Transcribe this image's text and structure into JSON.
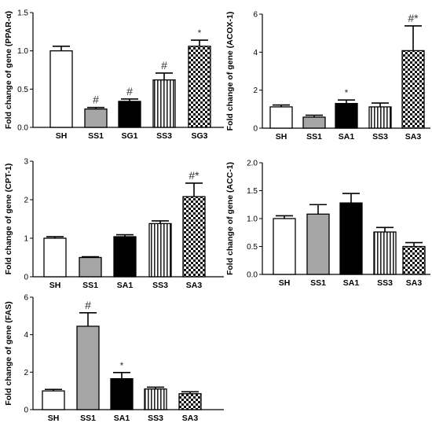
{
  "chart_data": [
    {
      "type": "bar",
      "ylabel": "Fold change of gene (PPAR-α)",
      "ylim": [
        0,
        1.5
      ],
      "yticks": [
        "0.0",
        "0.5",
        "1.0",
        "1.5"
      ],
      "categories": [
        "SH",
        "SS1",
        "SG1",
        "SS3",
        "SG3"
      ],
      "values": [
        1.0,
        0.24,
        0.34,
        0.62,
        1.06
      ],
      "errors": [
        0.06,
        0.02,
        0.03,
        0.09,
        0.08
      ],
      "annotations": [
        "",
        "#",
        "#",
        "#",
        "*"
      ],
      "fills": [
        "white",
        "gray",
        "black",
        "vstripe",
        "check"
      ]
    },
    {
      "type": "bar",
      "ylabel": "Fold change of gene (ACOX-1)",
      "ylim": [
        0,
        6
      ],
      "yticks": [
        "0",
        "2",
        "4",
        "6"
      ],
      "categories": [
        "SH",
        "SS1",
        "SA1",
        "SS3",
        "SA3"
      ],
      "values": [
        1.12,
        0.58,
        1.3,
        1.12,
        4.08
      ],
      "errors": [
        0.1,
        0.1,
        0.18,
        0.2,
        1.3
      ],
      "annotations": [
        "",
        "",
        "*",
        "",
        "#*"
      ],
      "fills": [
        "white",
        "gray",
        "black",
        "vstripe",
        "check"
      ]
    },
    {
      "type": "bar",
      "ylabel": "Fold change of gene (CPT-1)",
      "ylim": [
        0,
        3
      ],
      "yticks": [
        "0",
        "1",
        "2",
        "3"
      ],
      "categories": [
        "SH",
        "SS1",
        "SA1",
        "SS3",
        "SA3"
      ],
      "values": [
        1.0,
        0.5,
        1.04,
        1.38,
        2.08
      ],
      "errors": [
        0.04,
        0.02,
        0.05,
        0.07,
        0.35
      ],
      "annotations": [
        "",
        "",
        "",
        "",
        "#*"
      ],
      "fills": [
        "white",
        "gray",
        "black",
        "vstripe",
        "check"
      ]
    },
    {
      "type": "bar",
      "ylabel": "Fold change of gene (ACC-1)",
      "ylim": [
        0,
        2.0
      ],
      "yticks": [
        "0.0",
        "0.5",
        "1.0",
        "1.5",
        "2.0"
      ],
      "categories": [
        "SH",
        "SS1",
        "SA1",
        "SS3",
        "SA3"
      ],
      "values": [
        1.0,
        1.08,
        1.28,
        0.76,
        0.5
      ],
      "errors": [
        0.05,
        0.17,
        0.17,
        0.08,
        0.07
      ],
      "annotations": [
        "",
        "",
        "",
        "",
        ""
      ],
      "fills": [
        "white",
        "gray",
        "black",
        "vstripe",
        "check"
      ]
    },
    {
      "type": "bar",
      "ylabel": "Fold change of gene (FAS)",
      "ylim": [
        0,
        6
      ],
      "yticks": [
        "0",
        "2",
        "4",
        "6"
      ],
      "categories": [
        "SH",
        "SS1",
        "SA1",
        "SS3",
        "SA3"
      ],
      "values": [
        1.0,
        4.45,
        1.65,
        1.1,
        0.85
      ],
      "errors": [
        0.08,
        0.72,
        0.33,
        0.1,
        0.1
      ],
      "annotations": [
        "",
        "#",
        "*",
        "",
        ""
      ],
      "fills": [
        "white",
        "gray",
        "black",
        "vstripe",
        "check"
      ]
    }
  ]
}
